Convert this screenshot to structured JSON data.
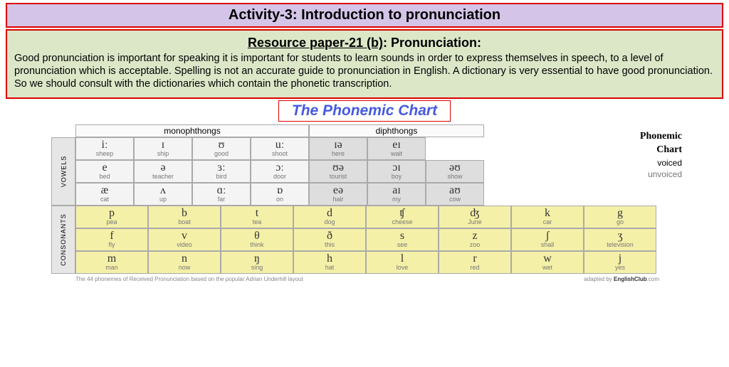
{
  "banner": "Activity-3: Introduction to pronunciation",
  "resource": {
    "title_underlined": "Resource paper-21 (b)",
    "title_suffix": ":   Pronunciation:",
    "body": "Good pronunciation is important for speaking it is important for students to learn sounds in order to express themselves in speech, to a level of pronunciation which is acceptable. Spelling is not an accurate guide to pronunciation in English. A dictionary is very essential to have good pronunciation. So we should consult with the dictionaries which contain the phonetic transcription."
  },
  "chart": {
    "title": "The Phonemic Chart",
    "legend": {
      "l1": "Phonemic",
      "l2": "Chart",
      "l3": "voiced",
      "l4": "unvoiced"
    },
    "group_labels": {
      "mono": "monophthongs",
      "diph": "diphthongs"
    },
    "side_labels": {
      "vowels": "VOWELS",
      "consonants": "CONSONANTS"
    },
    "layout": {
      "mono_cols": 4,
      "diph_cols": 3,
      "cons_cols": 8,
      "cell_w_vowel": 82,
      "cell_w_diph": 82,
      "cell_w_cons": 102
    },
    "rows": {
      "v1": [
        {
          "sym": "iː",
          "wrd": "sheep",
          "bg": "bg-mono"
        },
        {
          "sym": "ɪ",
          "wrd": "ship",
          "bg": "bg-mono"
        },
        {
          "sym": "ʊ",
          "wrd": "good",
          "bg": "bg-mono"
        },
        {
          "sym": "uː",
          "wrd": "shoot",
          "bg": "bg-mono"
        },
        {
          "sym": "ɪə",
          "wrd": "here",
          "bg": "bg-diph"
        },
        {
          "sym": "eɪ",
          "wrd": "wait",
          "bg": "bg-diph"
        },
        {
          "sym": "",
          "wrd": "",
          "bg": "empty"
        }
      ],
      "v2": [
        {
          "sym": "e",
          "wrd": "bed",
          "bg": "bg-mono"
        },
        {
          "sym": "ə",
          "wrd": "teacher",
          "bg": "bg-mono"
        },
        {
          "sym": "ɜː",
          "wrd": "bird",
          "bg": "bg-mono"
        },
        {
          "sym": "ɔː",
          "wrd": "door",
          "bg": "bg-mono"
        },
        {
          "sym": "ʊə",
          "wrd": "tourist",
          "bg": "bg-diph"
        },
        {
          "sym": "ɔɪ",
          "wrd": "boy",
          "bg": "bg-diph"
        },
        {
          "sym": "əʊ",
          "wrd": "show",
          "bg": "bg-diph"
        }
      ],
      "v3": [
        {
          "sym": "æ",
          "wrd": "cat",
          "bg": "bg-mono"
        },
        {
          "sym": "ʌ",
          "wrd": "up",
          "bg": "bg-mono"
        },
        {
          "sym": "ɑː",
          "wrd": "far",
          "bg": "bg-mono"
        },
        {
          "sym": "ɒ",
          "wrd": "on",
          "bg": "bg-mono"
        },
        {
          "sym": "eə",
          "wrd": "hair",
          "bg": "bg-diph"
        },
        {
          "sym": "aɪ",
          "wrd": "my",
          "bg": "bg-diph"
        },
        {
          "sym": "aʊ",
          "wrd": "cow",
          "bg": "bg-diph"
        }
      ],
      "c1": [
        {
          "sym": "p",
          "wrd": "pea"
        },
        {
          "sym": "b",
          "wrd": "boat"
        },
        {
          "sym": "t",
          "wrd": "tea"
        },
        {
          "sym": "d",
          "wrd": "dog"
        },
        {
          "sym": "ʧ",
          "wrd": "cheese"
        },
        {
          "sym": "ʤ",
          "wrd": "June"
        },
        {
          "sym": "k",
          "wrd": "car"
        },
        {
          "sym": "g",
          "wrd": "go"
        }
      ],
      "c2": [
        {
          "sym": "f",
          "wrd": "fly"
        },
        {
          "sym": "v",
          "wrd": "video"
        },
        {
          "sym": "θ",
          "wrd": "think"
        },
        {
          "sym": "ð",
          "wrd": "this"
        },
        {
          "sym": "s",
          "wrd": "see"
        },
        {
          "sym": "z",
          "wrd": "zoo"
        },
        {
          "sym": "ʃ",
          "wrd": "shall"
        },
        {
          "sym": "ʒ",
          "wrd": "television"
        }
      ],
      "c3": [
        {
          "sym": "m",
          "wrd": "man"
        },
        {
          "sym": "n",
          "wrd": "now"
        },
        {
          "sym": "ŋ",
          "wrd": "sing"
        },
        {
          "sym": "h",
          "wrd": "hat"
        },
        {
          "sym": "l",
          "wrd": "love"
        },
        {
          "sym": "r",
          "wrd": "red"
        },
        {
          "sym": "w",
          "wrd": "wet"
        },
        {
          "sym": "j",
          "wrd": "yes"
        }
      ]
    },
    "footer": {
      "left": "The 44 phonemes of Received Pronunciation based on the popular Adrian Underhill layout",
      "right_pre": "adapted by ",
      "right_bold": "EnglishClub",
      "right_suf": ".com"
    }
  }
}
